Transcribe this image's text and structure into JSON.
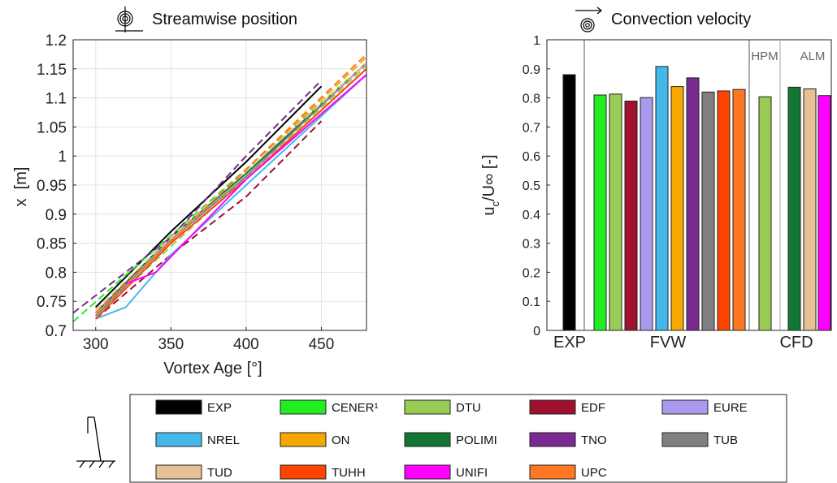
{
  "chart_data": [
    {
      "type": "line",
      "title": "Streamwise position",
      "title_icon": "spiral-with-crosshair-icon",
      "xlabel": "Vortex Age [°]",
      "ylabel": "x  [m]",
      "xlim": [
        285,
        480
      ],
      "ylim": [
        0.7,
        1.2
      ],
      "xticks": [
        "300",
        "350",
        "400",
        "450"
      ],
      "yticks": [
        "0.7",
        "0.75",
        "0.8",
        "0.85",
        "0.9",
        "0.95",
        "1",
        "1.05",
        "1.1",
        "1.15",
        "1.2"
      ],
      "grid": true,
      "series": [
        {
          "name": "EXP",
          "color": "#000000",
          "dashed": false,
          "x": [
            300,
            350,
            400,
            450
          ],
          "y": [
            0.74,
            0.87,
            0.99,
            1.12
          ]
        },
        {
          "name": "CENER¹",
          "color": "#22ee22",
          "dashed": true,
          "x": [
            285,
            480
          ],
          "y": [
            0.715,
            1.16
          ]
        },
        {
          "name": "DTU",
          "color": "#99cc55",
          "dashed": true,
          "x": [
            300,
            480
          ],
          "y": [
            0.725,
            1.155
          ]
        },
        {
          "name": "EDF",
          "color": "#a01030",
          "dashed": true,
          "x": [
            300,
            350,
            400,
            450
          ],
          "y": [
            0.72,
            0.83,
            0.93,
            1.06
          ]
        },
        {
          "name": "EURE",
          "color": "#aa99ee",
          "dashed": false,
          "x": [
            300,
            350,
            400,
            480
          ],
          "y": [
            0.72,
            0.85,
            0.96,
            1.15
          ]
        },
        {
          "name": "NREL",
          "color": "#44b8e8",
          "dashed": false,
          "x": [
            300,
            320,
            350,
            400,
            480
          ],
          "y": [
            0.72,
            0.74,
            0.83,
            0.95,
            1.14
          ]
        },
        {
          "name": "ON",
          "color": "#f5a800",
          "dashed": true,
          "x": [
            300,
            480
          ],
          "y": [
            0.73,
            1.17
          ]
        },
        {
          "name": "POLIMI",
          "color": "#117733",
          "dashed": false,
          "x": [
            300,
            350,
            400,
            480
          ],
          "y": [
            0.73,
            0.86,
            0.97,
            1.16
          ]
        },
        {
          "name": "TNO",
          "color": "#7a2a90",
          "dashed": true,
          "x": [
            285,
            350,
            400,
            450
          ],
          "y": [
            0.73,
            0.86,
            1.0,
            1.13
          ]
        },
        {
          "name": "TUB",
          "color": "#808080",
          "dashed": false,
          "x": [
            300,
            350,
            400,
            480
          ],
          "y": [
            0.725,
            0.855,
            0.965,
            1.16
          ]
        },
        {
          "name": "TUD",
          "color": "#e8c096",
          "dashed": true,
          "x": [
            300,
            350,
            400,
            480
          ],
          "y": [
            0.735,
            0.86,
            0.975,
            1.16
          ]
        },
        {
          "name": "TUHH",
          "color": "#ff4400",
          "dashed": false,
          "x": [
            300,
            350,
            400,
            480
          ],
          "y": [
            0.72,
            0.85,
            0.96,
            1.15
          ]
        },
        {
          "name": "UNIFI",
          "color": "#ff00ff",
          "dashed": false,
          "x": [
            320,
            340,
            400,
            480
          ],
          "y": [
            0.78,
            0.8,
            0.96,
            1.14
          ]
        },
        {
          "name": "UPC",
          "color": "#ff7722",
          "dashed": true,
          "x": [
            300,
            480
          ],
          "y": [
            0.73,
            1.175
          ]
        }
      ]
    },
    {
      "type": "bar",
      "title": "Convection velocity",
      "title_icon": "spiral-with-arrow-icon",
      "ylabel_main": "u",
      "ylabel_sub": "c",
      "ylabel_rest": "/U∞ [-]",
      "ylim": [
        0,
        1
      ],
      "yticks": [
        "0",
        "0.1",
        "0.2",
        "0.3",
        "0.4",
        "0.5",
        "0.6",
        "0.7",
        "0.8",
        "0.9",
        "1"
      ],
      "groups": [
        "EXP",
        "FVW",
        "CFD"
      ],
      "subgroups": [
        "HPM",
        "ALM"
      ],
      "bars": [
        {
          "name": "EXP",
          "group": "EXP",
          "value": 0.88,
          "color": "#000000"
        },
        {
          "name": "CENER¹",
          "group": "FVW",
          "value": 0.81,
          "color": "#22ee22"
        },
        {
          "name": "DTU",
          "group": "FVW",
          "value": 0.813,
          "color": "#99cc55"
        },
        {
          "name": "EDF",
          "group": "FVW",
          "value": 0.789,
          "color": "#a01030"
        },
        {
          "name": "EURE",
          "group": "FVW",
          "value": 0.801,
          "color": "#aa99ee"
        },
        {
          "name": "NREL",
          "group": "FVW",
          "value": 0.908,
          "color": "#44b8e8"
        },
        {
          "name": "ON",
          "group": "FVW",
          "value": 0.839,
          "color": "#f5a800"
        },
        {
          "name": "TNO",
          "group": "FVW",
          "value": 0.869,
          "color": "#7a2a90"
        },
        {
          "name": "TUB",
          "group": "FVW",
          "value": 0.82,
          "color": "#808080"
        },
        {
          "name": "TUHH",
          "group": "FVW",
          "value": 0.824,
          "color": "#ff4400"
        },
        {
          "name": "UPC",
          "group": "FVW",
          "value": 0.829,
          "color": "#ff7722"
        },
        {
          "name": "DTU",
          "group": "CFD-HPM",
          "value": 0.804,
          "color": "#99cc55"
        },
        {
          "name": "POLIMI",
          "group": "CFD-ALM",
          "value": 0.837,
          "color": "#117733"
        },
        {
          "name": "TUD",
          "group": "CFD-ALM",
          "value": 0.831,
          "color": "#e8c096"
        },
        {
          "name": "UNIFI",
          "group": "CFD-ALM",
          "value": 0.808,
          "color": "#ff00ff"
        }
      ]
    }
  ],
  "legend": {
    "icon": "turbine-tower-icon",
    "entries": [
      {
        "label": "EXP",
        "color": "#000000"
      },
      {
        "label": "CENER¹",
        "color": "#22ee22"
      },
      {
        "label": "DTU",
        "color": "#99cc55"
      },
      {
        "label": "EDF",
        "color": "#a01030"
      },
      {
        "label": "EURE",
        "color": "#aa99ee"
      },
      {
        "label": "NREL",
        "color": "#44b8e8"
      },
      {
        "label": "ON",
        "color": "#f5a800"
      },
      {
        "label": "POLIMI",
        "color": "#117733"
      },
      {
        "label": "TNO",
        "color": "#7a2a90"
      },
      {
        "label": "TUB",
        "color": "#808080"
      },
      {
        "label": "TUD",
        "color": "#e8c096"
      },
      {
        "label": "TUHH",
        "color": "#ff4400"
      },
      {
        "label": "UNIFI",
        "color": "#ff00ff"
      },
      {
        "label": "UPC",
        "color": "#ff7722"
      }
    ]
  }
}
